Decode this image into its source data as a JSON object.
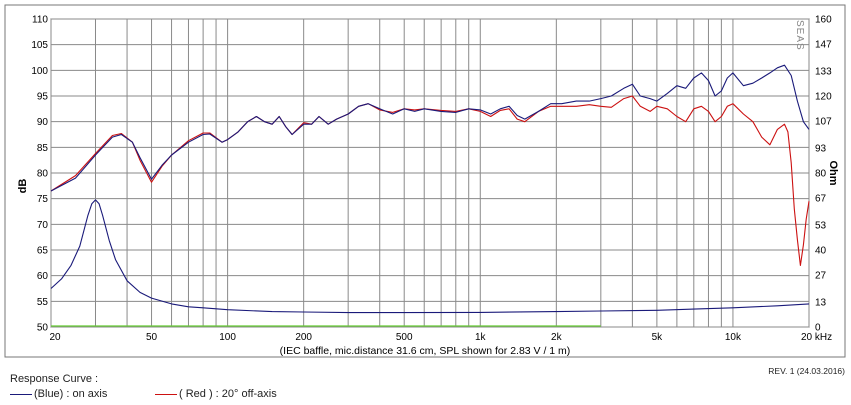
{
  "chart_data": {
    "type": "line",
    "xscale": "log",
    "xlim": [
      20,
      20000
    ],
    "ylim": [
      50,
      110
    ],
    "y2lim": [
      0,
      160
    ],
    "ylabel": "dB",
    "y2label": "Ohm",
    "xlabel": "(IEC baffle, mic.distance 31.6 cm, SPL shown for 2.83 V / 1 m)",
    "x_ticks": [
      20,
      30,
      40,
      50,
      60,
      70,
      80,
      90,
      100,
      200,
      300,
      400,
      500,
      600,
      700,
      800,
      900,
      1000,
      2000,
      3000,
      4000,
      5000,
      6000,
      7000,
      8000,
      9000,
      10000,
      20000
    ],
    "x_tick_labels": [
      {
        "x": 20,
        "label": "20"
      },
      {
        "x": 50,
        "label": "50"
      },
      {
        "x": 100,
        "label": "100"
      },
      {
        "x": 200,
        "label": "200"
      },
      {
        "x": 500,
        "label": "500"
      },
      {
        "x": 1000,
        "label": "1k"
      },
      {
        "x": 2000,
        "label": "2k"
      },
      {
        "x": 5000,
        "label": "5k"
      },
      {
        "x": 10000,
        "label": "10k"
      },
      {
        "x": 20000,
        "label": "20 kHz"
      }
    ],
    "y_ticks": [
      "50",
      "55",
      "60",
      "65",
      "70",
      "75",
      "80",
      "85",
      "90",
      "95",
      "100",
      "105",
      "110"
    ],
    "y2_ticks": [
      "0",
      "13",
      "27",
      "40",
      "53",
      "67",
      "80",
      "93",
      "107",
      "120",
      "133",
      "147",
      "160"
    ],
    "watermark": "SEAS",
    "grid": true,
    "series": [
      {
        "name": "on axis",
        "color": "#1a1a7a",
        "axis": "left",
        "points": [
          [
            20,
            76.5
          ],
          [
            25,
            79
          ],
          [
            30,
            83.5
          ],
          [
            35,
            87
          ],
          [
            38,
            87.5
          ],
          [
            42,
            86
          ],
          [
            45,
            83
          ],
          [
            50,
            78.8
          ],
          [
            55,
            81.5
          ],
          [
            60,
            83.5
          ],
          [
            70,
            86
          ],
          [
            80,
            87.5
          ],
          [
            85,
            87.6
          ],
          [
            95,
            86
          ],
          [
            100,
            86.5
          ],
          [
            110,
            88
          ],
          [
            120,
            90
          ],
          [
            130,
            91
          ],
          [
            140,
            90
          ],
          [
            150,
            89.5
          ],
          [
            160,
            91
          ],
          [
            170,
            89
          ],
          [
            180,
            87.5
          ],
          [
            200,
            89.5
          ],
          [
            215,
            89.5
          ],
          [
            230,
            91
          ],
          [
            250,
            89.5
          ],
          [
            270,
            90.5
          ],
          [
            300,
            91.5
          ],
          [
            330,
            93
          ],
          [
            360,
            93.5
          ],
          [
            400,
            92.5
          ],
          [
            450,
            91.5
          ],
          [
            500,
            92.5
          ],
          [
            550,
            92
          ],
          [
            600,
            92.5
          ],
          [
            700,
            92
          ],
          [
            800,
            91.8
          ],
          [
            900,
            92.5
          ],
          [
            1000,
            92.3
          ],
          [
            1100,
            91.5
          ],
          [
            1200,
            92.5
          ],
          [
            1300,
            93
          ],
          [
            1400,
            91.2
          ],
          [
            1500,
            90.5
          ],
          [
            1700,
            92
          ],
          [
            1900,
            93.5
          ],
          [
            2100,
            93.5
          ],
          [
            2400,
            94
          ],
          [
            2700,
            94
          ],
          [
            3000,
            94.5
          ],
          [
            3300,
            95
          ],
          [
            3700,
            96.5
          ],
          [
            4000,
            97.3
          ],
          [
            4300,
            95
          ],
          [
            4700,
            94.5
          ],
          [
            5000,
            94
          ],
          [
            5500,
            95.5
          ],
          [
            6000,
            97
          ],
          [
            6500,
            96.5
          ],
          [
            7000,
            98.5
          ],
          [
            7500,
            99.5
          ],
          [
            8000,
            98
          ],
          [
            8500,
            95
          ],
          [
            9000,
            96
          ],
          [
            9500,
            98.5
          ],
          [
            10000,
            99.5
          ],
          [
            11000,
            97
          ],
          [
            12000,
            97.5
          ],
          [
            13000,
            98.5
          ],
          [
            14000,
            99.5
          ],
          [
            15000,
            100.5
          ],
          [
            16000,
            101
          ],
          [
            17000,
            99
          ],
          [
            18000,
            94
          ],
          [
            19000,
            90
          ],
          [
            20000,
            88.5
          ]
        ]
      },
      {
        "name": "20° off-axis",
        "color": "#cc1111",
        "axis": "left",
        "points": [
          [
            20,
            76.5
          ],
          [
            25,
            79.5
          ],
          [
            30,
            83.8
          ],
          [
            35,
            87.3
          ],
          [
            38,
            87.7
          ],
          [
            42,
            86
          ],
          [
            45,
            82.5
          ],
          [
            50,
            78.2
          ],
          [
            55,
            81.3
          ],
          [
            60,
            83.5
          ],
          [
            70,
            86.3
          ],
          [
            80,
            87.8
          ],
          [
            85,
            87.8
          ],
          [
            95,
            86
          ],
          [
            100,
            86.5
          ],
          [
            110,
            88
          ],
          [
            120,
            90
          ],
          [
            130,
            91
          ],
          [
            140,
            90
          ],
          [
            150,
            89.5
          ],
          [
            160,
            91
          ],
          [
            170,
            89
          ],
          [
            180,
            87.5
          ],
          [
            200,
            89.8
          ],
          [
            215,
            89.5
          ],
          [
            230,
            91
          ],
          [
            250,
            89.5
          ],
          [
            270,
            90.5
          ],
          [
            300,
            91.5
          ],
          [
            330,
            93
          ],
          [
            360,
            93.5
          ],
          [
            400,
            92.3
          ],
          [
            450,
            91.8
          ],
          [
            500,
            92.5
          ],
          [
            550,
            92.3
          ],
          [
            600,
            92.5
          ],
          [
            700,
            92.2
          ],
          [
            800,
            92
          ],
          [
            900,
            92.5
          ],
          [
            1000,
            92
          ],
          [
            1100,
            91
          ],
          [
            1200,
            92.2
          ],
          [
            1300,
            92.5
          ],
          [
            1400,
            90.5
          ],
          [
            1500,
            90
          ],
          [
            1700,
            92
          ],
          [
            1900,
            93
          ],
          [
            2100,
            93
          ],
          [
            2400,
            93
          ],
          [
            2700,
            93.3
          ],
          [
            3000,
            93
          ],
          [
            3300,
            92.8
          ],
          [
            3700,
            94.5
          ],
          [
            4000,
            95
          ],
          [
            4300,
            93
          ],
          [
            4700,
            92
          ],
          [
            5000,
            93
          ],
          [
            5500,
            92.5
          ],
          [
            6000,
            91
          ],
          [
            6500,
            90
          ],
          [
            7000,
            92.5
          ],
          [
            7500,
            93
          ],
          [
            8000,
            92
          ],
          [
            8500,
            90
          ],
          [
            9000,
            91
          ],
          [
            9500,
            93
          ],
          [
            10000,
            93.5
          ],
          [
            11000,
            91.5
          ],
          [
            12000,
            90
          ],
          [
            13000,
            87
          ],
          [
            14000,
            85.5
          ],
          [
            15000,
            88.5
          ],
          [
            16000,
            89.5
          ],
          [
            16500,
            88
          ],
          [
            17000,
            82
          ],
          [
            17500,
            73
          ],
          [
            18000,
            67
          ],
          [
            18500,
            62
          ],
          [
            19000,
            66
          ],
          [
            19500,
            71
          ],
          [
            20000,
            74.5
          ]
        ]
      },
      {
        "name": "impedance",
        "color": "#1a1a7a",
        "axis": "right",
        "points": [
          [
            20,
            20
          ],
          [
            22,
            25
          ],
          [
            24,
            32
          ],
          [
            26,
            42
          ],
          [
            28,
            58
          ],
          [
            29,
            64
          ],
          [
            30,
            66
          ],
          [
            31,
            64
          ],
          [
            32,
            58
          ],
          [
            34,
            45
          ],
          [
            36,
            35
          ],
          [
            40,
            24
          ],
          [
            45,
            18
          ],
          [
            50,
            15
          ],
          [
            60,
            12
          ],
          [
            70,
            10.5
          ],
          [
            80,
            10
          ],
          [
            100,
            9
          ],
          [
            150,
            8
          ],
          [
            200,
            7.8
          ],
          [
            300,
            7.5
          ],
          [
            500,
            7.5
          ],
          [
            1000,
            7.6
          ],
          [
            2000,
            8
          ],
          [
            3000,
            8.3
          ],
          [
            5000,
            8.7
          ],
          [
            7000,
            9.3
          ],
          [
            10000,
            10
          ],
          [
            15000,
            11
          ],
          [
            20000,
            12
          ]
        ]
      }
    ],
    "reference_line": {
      "y": 50,
      "color": "#66cc33",
      "x_range": [
        20,
        3000
      ]
    }
  },
  "legend": {
    "title": "Response Curve :",
    "items": [
      {
        "text": "(Blue)  : on axis",
        "color": "#1a1a7a"
      },
      {
        "text": "( Red ) : 20° off-axis",
        "color": "#cc1111"
      }
    ]
  },
  "revision": "REV. 1 (24.03.2016)"
}
